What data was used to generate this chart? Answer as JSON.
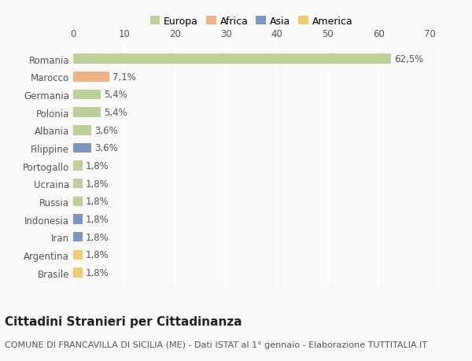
{
  "countries": [
    "Romania",
    "Marocco",
    "Germania",
    "Polonia",
    "Albania",
    "Filippine",
    "Portogallo",
    "Ucraina",
    "Russia",
    "Indonesia",
    "Iran",
    "Argentina",
    "Brasile"
  ],
  "values": [
    62.5,
    7.1,
    5.4,
    5.4,
    3.6,
    3.6,
    1.8,
    1.8,
    1.8,
    1.8,
    1.8,
    1.8,
    1.8
  ],
  "labels": [
    "62,5%",
    "7,1%",
    "5,4%",
    "5,4%",
    "3,6%",
    "3,6%",
    "1,8%",
    "1,8%",
    "1,8%",
    "1,8%",
    "1,8%",
    "1,8%",
    "1,8%"
  ],
  "continents": [
    "Europa",
    "Africa",
    "Europa",
    "Europa",
    "Europa",
    "Asia",
    "Europa",
    "Europa",
    "Europa",
    "Asia",
    "Asia",
    "America",
    "America"
  ],
  "colors": {
    "Europa": "#b5cc8e",
    "Africa": "#f0a878",
    "Asia": "#6b8cba",
    "America": "#f0c860"
  },
  "legend_order": [
    "Europa",
    "Africa",
    "Asia",
    "America"
  ],
  "title": "Cittadini Stranieri per Cittadinanza",
  "subtitle": "COMUNE DI FRANCAVILLA DI SICILIA (ME) - Dati ISTAT al 1° gennaio - Elaborazione TUTTITALIA.IT",
  "xlabel_ticks": [
    0,
    10,
    20,
    30,
    40,
    50,
    60,
    70
  ],
  "xlim": [
    0,
    70
  ],
  "bg_color": "#f9f9f9",
  "plot_bg_color": "#f9f9f9",
  "grid_color": "#ffffff",
  "bar_height": 0.55,
  "title_fontsize": 11,
  "subtitle_fontsize": 8,
  "tick_fontsize": 8.5,
  "label_fontsize": 8.5,
  "legend_fontsize": 9
}
